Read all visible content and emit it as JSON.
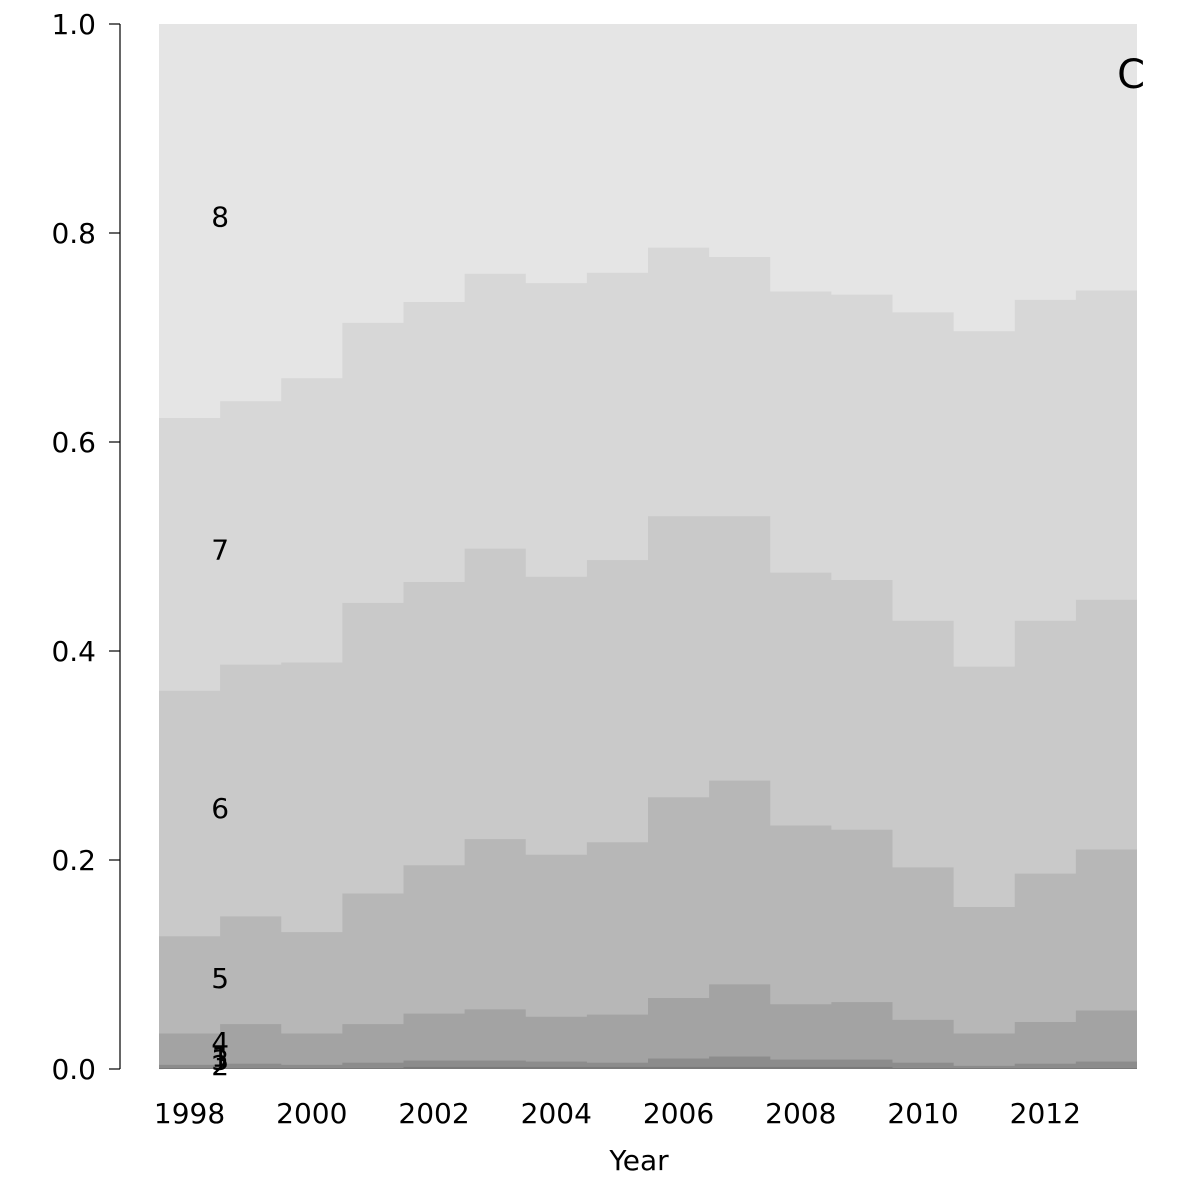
{
  "chart_data": {
    "type": "area",
    "panel_label": "C",
    "title": "",
    "xlabel": "Year",
    "ylabel": "",
    "x": [
      1998,
      1999,
      2000,
      2001,
      2002,
      2003,
      2004,
      2005,
      2006,
      2007,
      2008,
      2009,
      2010,
      2011,
      2012,
      2013
    ],
    "xlim": [
      1997.5,
      2013.5
    ],
    "ylim": [
      0,
      1
    ],
    "x_ticks": [
      "1998",
      "2000",
      "2002",
      "2004",
      "2006",
      "2008",
      "2010",
      "2012"
    ],
    "y_ticks": [
      "0.0",
      "0.2",
      "0.4",
      "0.6",
      "0.8",
      "1.0"
    ],
    "stacked": true,
    "step": true,
    "series": [
      {
        "name": "1",
        "color": "#7a7a7a",
        "cumulative_top": [
          0.001,
          0.001,
          0.001,
          0.001,
          0.002,
          0.002,
          0.002,
          0.002,
          0.002,
          0.002,
          0.002,
          0.002,
          0.001,
          0.001,
          0.001,
          0.001
        ]
      },
      {
        "name": "2",
        "color": "#8c8c8c",
        "cumulative_top": [
          0.004,
          0.005,
          0.004,
          0.006,
          0.008,
          0.008,
          0.007,
          0.006,
          0.01,
          0.012,
          0.009,
          0.009,
          0.006,
          0.003,
          0.005,
          0.007
        ]
      },
      {
        "name": "3",
        "color": "#969696",
        "cumulative_top": [
          0.004,
          0.005,
          0.004,
          0.006,
          0.008,
          0.008,
          0.007,
          0.006,
          0.01,
          0.012,
          0.009,
          0.009,
          0.006,
          0.003,
          0.005,
          0.007
        ]
      },
      {
        "name": "4",
        "color": "#a3a3a3",
        "cumulative_top": [
          0.034,
          0.043,
          0.034,
          0.043,
          0.053,
          0.057,
          0.05,
          0.052,
          0.068,
          0.081,
          0.062,
          0.064,
          0.047,
          0.034,
          0.045,
          0.056
        ]
      },
      {
        "name": "5",
        "color": "#b7b7b7",
        "cumulative_top": [
          0.127,
          0.146,
          0.131,
          0.168,
          0.195,
          0.22,
          0.205,
          0.217,
          0.26,
          0.276,
          0.233,
          0.229,
          0.193,
          0.155,
          0.187,
          0.21
        ]
      },
      {
        "name": "6",
        "color": "#c9c9c9",
        "cumulative_top": [
          0.362,
          0.387,
          0.389,
          0.446,
          0.466,
          0.498,
          0.471,
          0.487,
          0.529,
          0.529,
          0.475,
          0.468,
          0.429,
          0.385,
          0.429,
          0.449
        ]
      },
      {
        "name": "7",
        "color": "#d7d7d7",
        "cumulative_top": [
          0.623,
          0.639,
          0.661,
          0.714,
          0.734,
          0.761,
          0.752,
          0.762,
          0.786,
          0.777,
          0.744,
          0.741,
          0.724,
          0.706,
          0.736,
          0.745
        ]
      },
      {
        "name": "8",
        "color": "#e5e5e5",
        "cumulative_top": [
          1,
          1,
          1,
          1,
          1,
          1,
          1,
          1,
          1,
          1,
          1,
          1,
          1,
          1,
          1,
          1
        ]
      }
    ],
    "series_label_values": {
      "1": 0.012,
      "2": 0.004,
      "3": 0.009,
      "4": 0.026,
      "5": 0.087,
      "6": 0.25,
      "7": 0.497,
      "8": 0.816
    },
    "series_label_x": 1998.5,
    "grid": false,
    "legend": "none"
  }
}
